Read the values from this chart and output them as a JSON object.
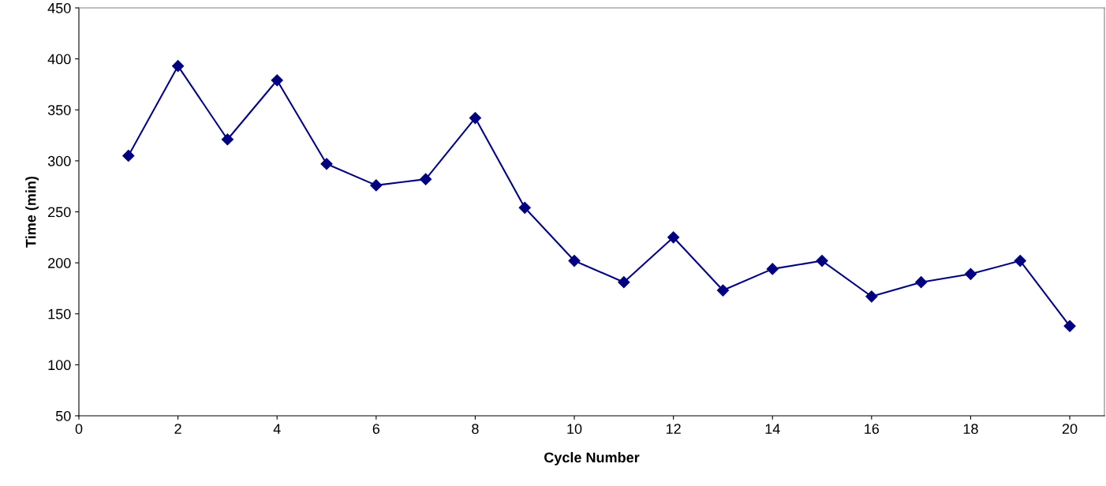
{
  "chart_data": {
    "type": "line",
    "xlabel": "Cycle Number",
    "ylabel": "Time (min)",
    "x": [
      1,
      2,
      3,
      4,
      5,
      6,
      7,
      8,
      9,
      10,
      11,
      12,
      13,
      14,
      15,
      16,
      17,
      18,
      19,
      20
    ],
    "series": [
      {
        "color": "#000080",
        "values": [
          305,
          393,
          321,
          379,
          297,
          276,
          282,
          342,
          254,
          202,
          181,
          225,
          173,
          194,
          202,
          167,
          181,
          189,
          202,
          138
        ]
      }
    ],
    "xlim": [
      0,
      20.7
    ],
    "xticks": [
      0,
      2,
      4,
      6,
      8,
      10,
      12,
      14,
      16,
      18,
      20
    ],
    "ylim": [
      50,
      450
    ],
    "yticks": [
      50,
      100,
      150,
      200,
      250,
      300,
      350,
      400,
      450
    ],
    "marker": "diamond",
    "line_style": "solid",
    "grid": false,
    "legend": false
  }
}
